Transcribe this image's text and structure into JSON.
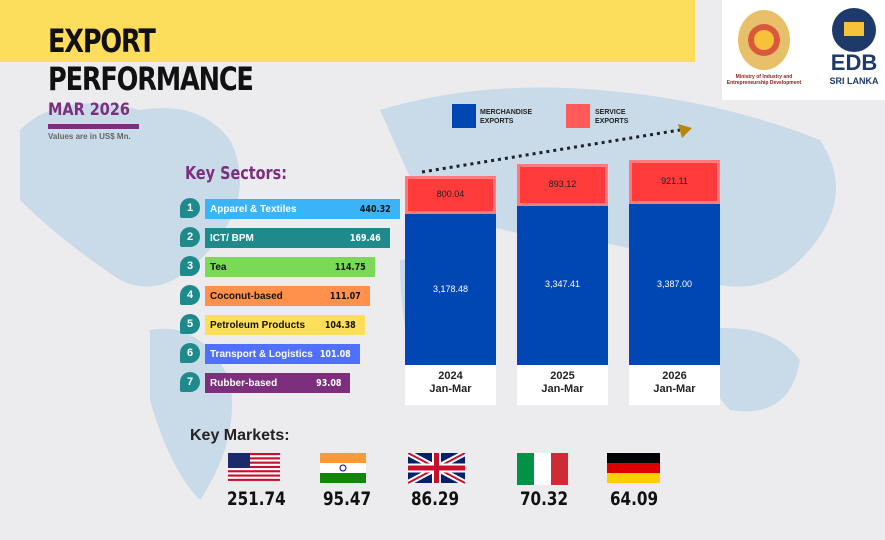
{
  "header": {
    "title_line1": "EXPORT",
    "title_line2": "PERFORMANCE",
    "period": "MAR 2026",
    "units_note": "Values are in US$ Mn."
  },
  "logos": {
    "ministry": "Ministry of Industry and Entrepreneurship Development",
    "edb": "EDB",
    "edb_sub": "SRI LANKA"
  },
  "sectors": {
    "heading": "Key Sectors:",
    "items": [
      {
        "rank": "1",
        "name": "Apparel & Textiles",
        "value": "440.32",
        "color": "#3ab4f7"
      },
      {
        "rank": "2",
        "name": "ICT/ BPM",
        "value": "169.46",
        "color": "#1f8a8c"
      },
      {
        "rank": "3",
        "name": "Tea",
        "value": "114.75",
        "color": "#7ad957"
      },
      {
        "rank": "4",
        "name": "Coconut-based",
        "value": "111.07",
        "color": "#ff914d"
      },
      {
        "rank": "5",
        "name": "Petroleum Products",
        "value": "104.38",
        "color": "#ffde59"
      },
      {
        "rank": "6",
        "name": "Transport & Logistics",
        "value": "101.08",
        "color": "#5170ff"
      },
      {
        "rank": "7",
        "name": "Rubber-based",
        "value": "93.08",
        "color": "#7b2f7c"
      }
    ]
  },
  "markets": {
    "heading": "Key Markets:",
    "items": [
      {
        "flag": "usa-flag",
        "value": "251.74"
      },
      {
        "flag": "india-flag",
        "value": "95.47"
      },
      {
        "flag": "uk-flag",
        "value": "86.29"
      },
      {
        "flag": "italy-flag",
        "value": "70.32"
      },
      {
        "flag": "germany-flag",
        "value": "64.09"
      }
    ]
  },
  "chart_data": {
    "type": "bar",
    "stacked": true,
    "categories": [
      "2024 Jan-Mar",
      "2025 Jan-Mar",
      "2026 Jan-Mar"
    ],
    "category_years": [
      "2024",
      "2025",
      "2026"
    ],
    "category_period": "Jan-Mar",
    "series": [
      {
        "name": "MERCHANDISE EXPORTS",
        "color": "#0047b3",
        "values": [
          3178.48,
          3347.41,
          3387.0
        ],
        "labels": [
          "3,178.48",
          "3,347.41",
          "3,387.00"
        ]
      },
      {
        "name": "SERVICE EXPORTS",
        "color": "#ff3b3b",
        "values": [
          800.04,
          893.12,
          921.11
        ],
        "labels": [
          "800.04",
          "893.12",
          "921.11"
        ]
      }
    ],
    "legend": "top",
    "grid": false
  }
}
